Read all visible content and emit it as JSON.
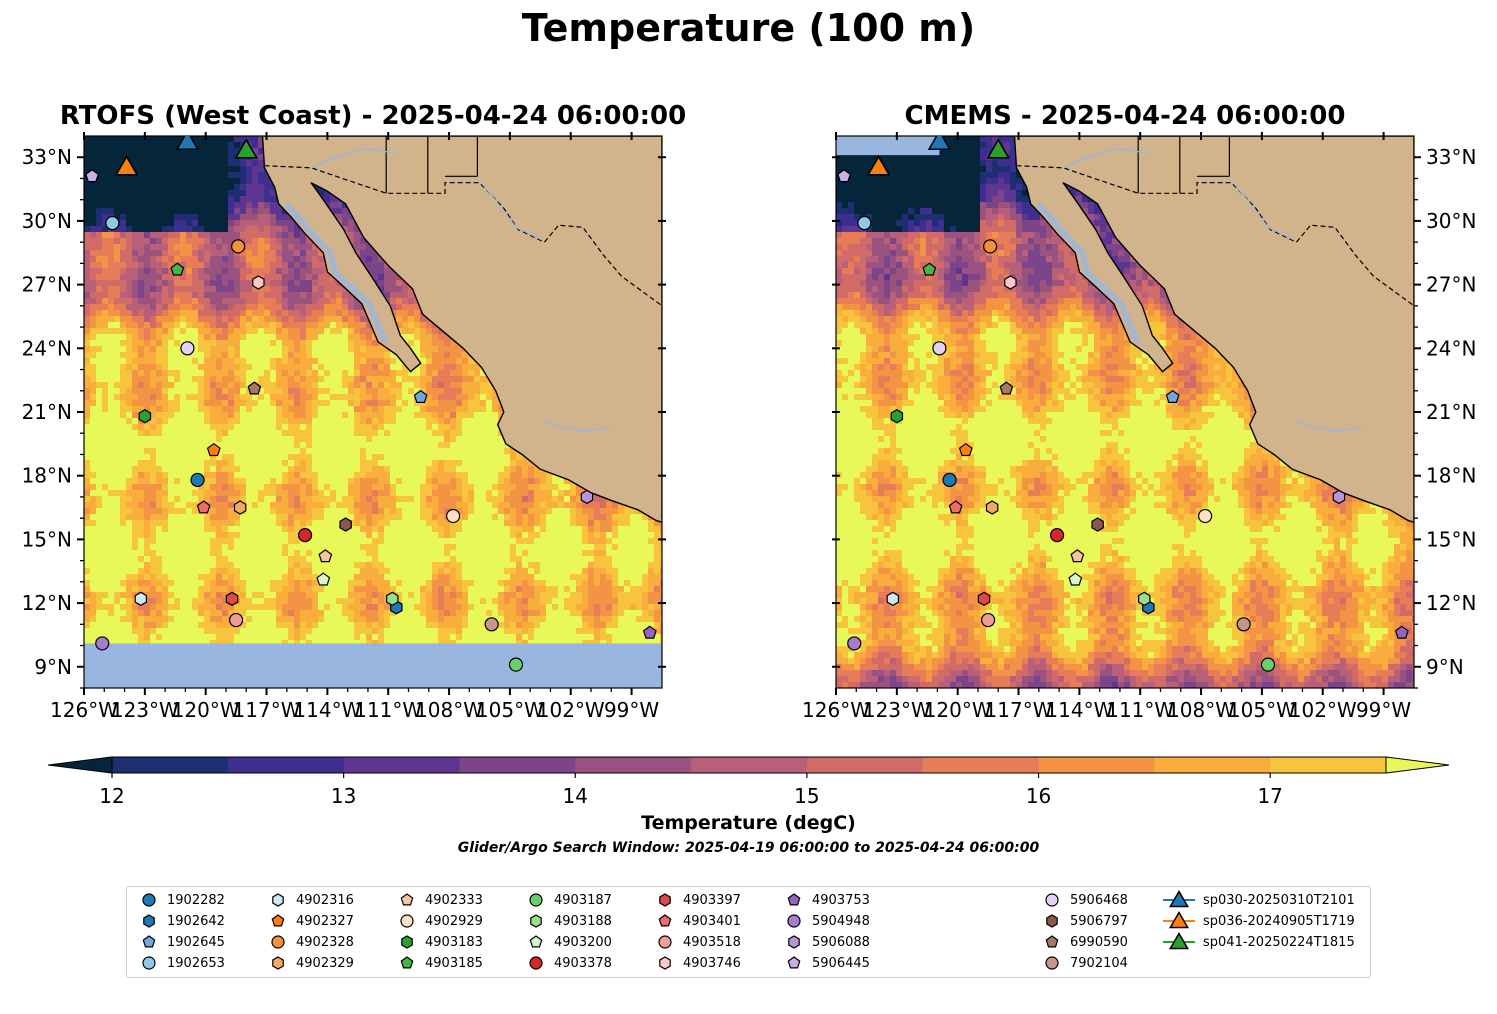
{
  "figure": {
    "title": "Temperature (100 m)",
    "colorbar_label": "Temperature (degC)",
    "search_window": "Glider/Argo Search Window: 2025-04-19 06:00:00 to 2025-04-24 06:00:00"
  },
  "chart_data": {
    "type": "heatmap",
    "panels": [
      {
        "title": "RTOFS (West Coast) - 2025-04-24 06:00:00",
        "model": "RTOFS",
        "data_southern_limit_lat": 10.1
      },
      {
        "title": "CMEMS - 2025-04-24 06:00:00",
        "model": "CMEMS",
        "data_southern_limit_lat": 8.0
      }
    ],
    "lon_range": [
      -126,
      -97.5
    ],
    "lat_range": [
      8,
      34
    ],
    "x_ticks": [
      "126°W",
      "123°W",
      "120°W",
      "117°W",
      "114°W",
      "111°W",
      "108°W",
      "105°W",
      "102°W",
      "99°W"
    ],
    "x_tick_values": [
      -126,
      -123,
      -120,
      -117,
      -114,
      -111,
      -108,
      -105,
      -102,
      -99
    ],
    "y_ticks": [
      "33°N",
      "30°N",
      "27°N",
      "24°N",
      "21°N",
      "18°N",
      "15°N",
      "12°N",
      "9°N"
    ],
    "y_tick_values": [
      33,
      30,
      27,
      24,
      21,
      18,
      15,
      12,
      9
    ],
    "colorbar": {
      "min": 12,
      "max": 17.5,
      "step": 0.5,
      "extend": "both",
      "ticks": [
        12,
        13,
        14,
        15,
        16,
        17
      ],
      "tick_labels": [
        "12",
        "13",
        "14",
        "15",
        "16",
        "17"
      ],
      "colors": [
        "#05263a",
        "#1d2f70",
        "#3d2e8f",
        "#5e3691",
        "#7c4589",
        "#9a527f",
        "#b8607a",
        "#d06b67",
        "#e67d58",
        "#f39344",
        "#f9ad3d",
        "#f7c43d",
        "#e8f858"
      ]
    },
    "land_color": "#d2b48c",
    "nodata_color": "#98b6e0",
    "platforms": [
      {
        "id": "1902282",
        "marker": "circle",
        "color": "#1f77b4",
        "lon": -120.4,
        "lat": 17.8
      },
      {
        "id": "1902642",
        "marker": "hexagon",
        "color": "#1f77b4",
        "lon": -110.6,
        "lat": 11.8
      },
      {
        "id": "1902645",
        "marker": "pentagon",
        "color": "#6fa8dc",
        "lon": -109.4,
        "lat": 21.7
      },
      {
        "id": "1902653",
        "marker": "circle",
        "color": "#8ecae6",
        "lon": -124.6,
        "lat": 29.9
      },
      {
        "id": "4902316",
        "marker": "hexagon",
        "color": "#cde8f7",
        "lon": -123.2,
        "lat": 12.2
      },
      {
        "id": "4902327",
        "marker": "pentagon",
        "color": "#ff7f0e",
        "lon": -119.6,
        "lat": 19.2
      },
      {
        "id": "4902328",
        "marker": "circle",
        "color": "#f2913a",
        "lon": -118.4,
        "lat": 28.8
      },
      {
        "id": "4902329",
        "marker": "hexagon",
        "color": "#f5a860",
        "lon": -118.3,
        "lat": 16.5
      },
      {
        "id": "4902333",
        "marker": "pentagon",
        "color": "#f5c79f",
        "lon": -114.1,
        "lat": 14.2
      },
      {
        "id": "4902929",
        "marker": "circle",
        "color": "#fde0c5",
        "lon": -107.8,
        "lat": 16.1
      },
      {
        "id": "4903183",
        "marker": "hexagon",
        "color": "#2ca02c",
        "lon": -123.0,
        "lat": 20.8
      },
      {
        "id": "4903185",
        "marker": "pentagon",
        "color": "#45b545",
        "lon": -121.4,
        "lat": 27.7
      },
      {
        "id": "4903187",
        "marker": "circle",
        "color": "#6bd06b",
        "lon": -104.7,
        "lat": 9.1
      },
      {
        "id": "4903188",
        "marker": "hexagon",
        "color": "#98df8a",
        "lon": -110.8,
        "lat": 12.2
      },
      {
        "id": "4903200",
        "marker": "pentagon",
        "color": "#d4f7cf",
        "lon": -114.2,
        "lat": 13.1
      },
      {
        "id": "4903378",
        "marker": "circle",
        "color": "#d62728",
        "lon": -115.1,
        "lat": 15.2
      },
      {
        "id": "4903397",
        "marker": "hexagon",
        "color": "#e04848",
        "lon": -118.7,
        "lat": 12.2
      },
      {
        "id": "4903401",
        "marker": "pentagon",
        "color": "#ee6b6b",
        "lon": -120.1,
        "lat": 16.5
      },
      {
        "id": "4903518",
        "marker": "circle",
        "color": "#f29b9b",
        "lon": -118.5,
        "lat": 11.2
      },
      {
        "id": "4903746",
        "marker": "hexagon",
        "color": "#fbc8c8",
        "lon": -117.4,
        "lat": 27.1
      },
      {
        "id": "4903753",
        "marker": "pentagon",
        "color": "#9467bd",
        "lon": -98.1,
        "lat": 10.6
      },
      {
        "id": "5904948",
        "marker": "circle",
        "color": "#a67cd0",
        "lon": -125.1,
        "lat": 10.1
      },
      {
        "id": "5906088",
        "marker": "hexagon",
        "color": "#b894db",
        "lon": -101.2,
        "lat": 17.0
      },
      {
        "id": "5906445",
        "marker": "pentagon",
        "color": "#cbaee8",
        "lon": -125.6,
        "lat": 32.1
      },
      {
        "id": "5906468",
        "marker": "circle",
        "color": "#e3d2f5",
        "lon": -120.9,
        "lat": 24.0
      },
      {
        "id": "5906797",
        "marker": "hexagon",
        "color": "#8c564b",
        "lon": -113.1,
        "lat": 15.7
      },
      {
        "id": "6990590",
        "marker": "pentagon",
        "color": "#a8776b",
        "lon": -117.6,
        "lat": 22.1
      },
      {
        "id": "7902104",
        "marker": "circle",
        "color": "#c4968c",
        "lon": -105.9,
        "lat": 11.0
      }
    ],
    "gliders": [
      {
        "id": "sp030-20250310T2101",
        "color": "#1f77b4",
        "lon": -120.9,
        "lat": 33.8
      },
      {
        "id": "sp036-20240905T1719",
        "color": "#ff7f0e",
        "lon": -123.9,
        "lat": 32.6
      },
      {
        "id": "sp041-20250224T1815",
        "color": "#2ca02c",
        "lon": -118.0,
        "lat": 33.4
      }
    ]
  }
}
